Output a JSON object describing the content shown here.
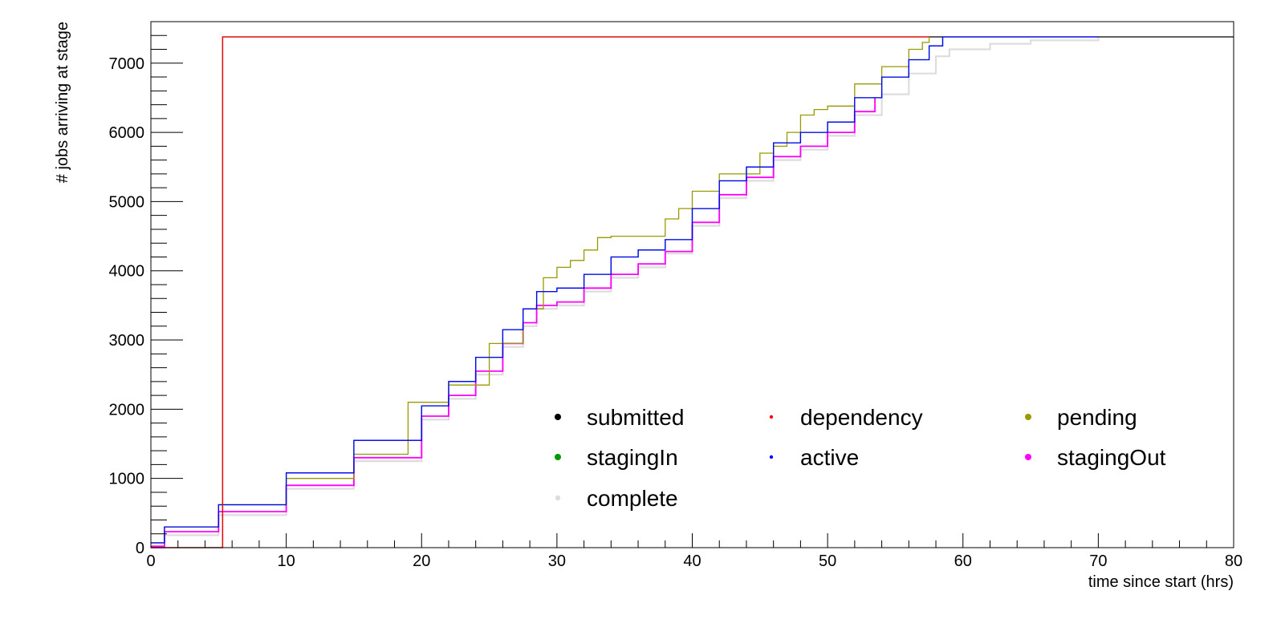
{
  "chart_data": {
    "type": "line",
    "title": "",
    "xlabel": "time since start (hrs)",
    "ylabel": "# jobs arriving at stage",
    "xlim": [
      0,
      80
    ],
    "ylim": [
      0,
      7600
    ],
    "x_ticks": [
      0,
      10,
      20,
      30,
      40,
      50,
      60,
      70,
      80
    ],
    "y_ticks": [
      0,
      1000,
      2000,
      3000,
      4000,
      5000,
      6000,
      7000
    ],
    "x_tick_labels": [
      "0",
      "10",
      "20",
      "30",
      "40",
      "50",
      "60",
      "70",
      "80"
    ],
    "y_tick_labels": [
      "0",
      "1000",
      "2000",
      "3000",
      "4000",
      "5000",
      "6000",
      "7000"
    ],
    "grid": false,
    "legend": {
      "position": "bottom-right",
      "columns": 3,
      "entries": [
        "submitted",
        "dependency",
        "pending",
        "stagingIn",
        "active",
        "stagingOut",
        "complete"
      ]
    },
    "series": [
      {
        "name": "submitted",
        "color": "#000000",
        "x": [
          0,
          5.3,
          80
        ],
        "y": [
          0,
          7380,
          7380
        ]
      },
      {
        "name": "dependency",
        "color": "#ff0000",
        "x": [
          0,
          5.3,
          57.5
        ],
        "y": [
          0,
          7380,
          7380
        ]
      },
      {
        "name": "pending",
        "color": "#999900",
        "x": [
          0,
          1,
          5,
          10,
          15,
          19,
          22,
          25,
          27.5,
          29,
          30,
          31,
          32,
          33,
          34,
          36,
          38,
          39,
          40,
          42,
          45,
          46,
          47,
          48,
          49,
          50,
          52,
          54,
          56,
          57,
          57.5
        ],
        "y": [
          70,
          300,
          620,
          1000,
          1350,
          2100,
          2350,
          2950,
          3450,
          3900,
          4050,
          4150,
          4300,
          4480,
          4500,
          4500,
          4750,
          4900,
          5150,
          5400,
          5700,
          5800,
          6000,
          6250,
          6330,
          6380,
          6700,
          6950,
          7200,
          7300,
          7380
        ]
      },
      {
        "name": "stagingIn",
        "color": "#009900",
        "x": [
          0,
          1,
          5,
          10,
          15,
          20,
          22,
          24,
          26,
          27.5,
          28.5,
          30,
          32,
          34,
          36,
          38,
          40,
          42,
          44,
          46,
          48,
          50,
          52,
          54,
          56,
          57.5,
          58.5
        ],
        "y": [
          70,
          300,
          620,
          1080,
          1550,
          2050,
          2400,
          2750,
          3150,
          3450,
          3700,
          3750,
          3950,
          4200,
          4300,
          4450,
          4900,
          5300,
          5500,
          5850,
          6000,
          6150,
          6500,
          6800,
          7050,
          7250,
          7380
        ]
      },
      {
        "name": "active",
        "color": "#0000ff",
        "x": [
          0,
          1,
          5,
          10,
          15,
          20,
          22,
          24,
          26,
          27.5,
          28.5,
          30,
          32,
          34,
          36,
          38,
          40,
          42,
          44,
          46,
          48,
          50,
          52,
          54,
          56,
          57.5,
          58.5,
          70
        ],
        "y": [
          70,
          300,
          620,
          1080,
          1550,
          2050,
          2400,
          2750,
          3150,
          3450,
          3700,
          3750,
          3950,
          4200,
          4300,
          4450,
          4900,
          5300,
          5500,
          5850,
          6000,
          6150,
          6500,
          6800,
          7050,
          7250,
          7380,
          7380
        ]
      },
      {
        "name": "stagingOut",
        "color": "#ff00ff",
        "x": [
          0,
          1,
          5,
          10,
          15,
          20,
          22,
          24,
          26,
          27.5,
          28.5,
          30,
          32,
          34,
          36,
          38,
          40,
          42,
          44,
          46,
          48,
          50,
          52,
          53.5
        ],
        "y": [
          20,
          230,
          520,
          900,
          1300,
          1900,
          2200,
          2550,
          2950,
          3250,
          3500,
          3550,
          3750,
          3950,
          4100,
          4280,
          4700,
          5100,
          5350,
          5650,
          5800,
          6000,
          6300,
          6500
        ]
      },
      {
        "name": "complete",
        "color": "#dddddd",
        "x": [
          0,
          1,
          5,
          10,
          15,
          20,
          22,
          24,
          26,
          27.5,
          28.5,
          30,
          32,
          34,
          36,
          38,
          40,
          42,
          44,
          46,
          48,
          50,
          52,
          54,
          56,
          58,
          59,
          62,
          65,
          70
        ],
        "y": [
          0,
          180,
          470,
          850,
          1250,
          1850,
          2150,
          2500,
          2900,
          3200,
          3450,
          3500,
          3700,
          3900,
          4050,
          4250,
          4650,
          5050,
          5300,
          5600,
          5750,
          5950,
          6250,
          6550,
          6850,
          7100,
          7200,
          7280,
          7330,
          7380
        ]
      }
    ]
  },
  "colors": {
    "axis": "#000000",
    "background": "#ffffff"
  }
}
